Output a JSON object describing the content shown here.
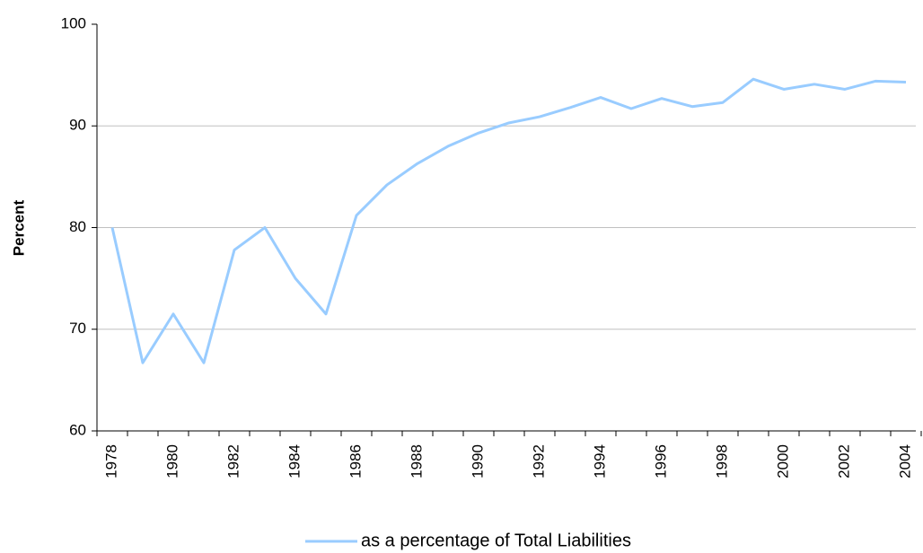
{
  "chart_data": {
    "type": "line",
    "y_label": "Percent",
    "categories": [
      "1978",
      null,
      "1980",
      null,
      "1982",
      null,
      "1984",
      null,
      "1986",
      null,
      "1988",
      null,
      "1990",
      null,
      "1992",
      null,
      "1994",
      null,
      "1996",
      null,
      "1998",
      null,
      "2000",
      null,
      "2002",
      null,
      "2004"
    ],
    "series": [
      {
        "name": "as a percentage of Total Liabilities",
        "color": "#99ccff",
        "values": [
          80,
          66.7,
          71.5,
          66.7,
          77.8,
          80,
          75,
          71.5,
          81.2,
          84.2,
          86.3,
          88.0,
          89.3,
          90.3,
          90.9,
          91.8,
          92.8,
          91.7,
          92.7,
          91.9,
          92.3,
          94.6,
          93.6,
          94.1,
          93.6,
          94.4,
          94.3
        ]
      }
    ],
    "ylim": [
      60,
      100
    ],
    "yticks": [
      60,
      70,
      80,
      90,
      100
    ],
    "grid": true,
    "legend": "bottom"
  }
}
